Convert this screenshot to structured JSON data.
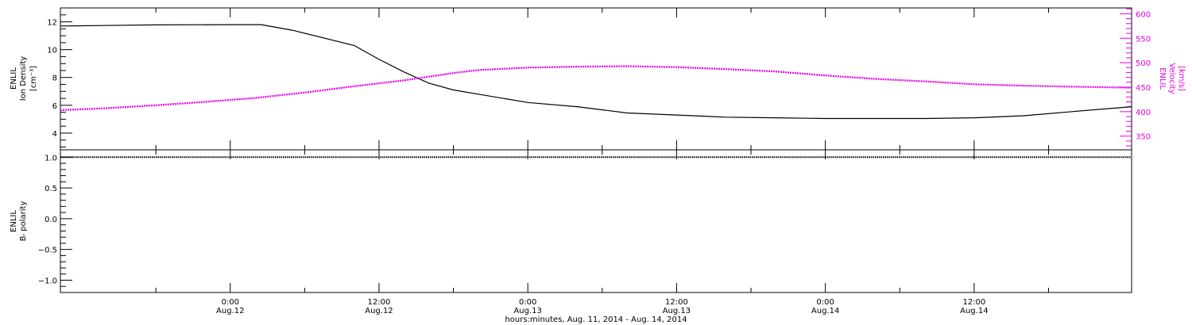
{
  "colors": {
    "density": "#000000",
    "velocity": "#e600e6",
    "polarity": "#000000",
    "axis": "#000000"
  },
  "chart_data": [
    {
      "type": "line",
      "panel": "top",
      "ylabel": [
        "ENLIL",
        "Ion Density",
        "[cm⁻³]"
      ],
      "y2label": [
        "ENLIL",
        "Velocity",
        "[km/s]"
      ],
      "ylim": [
        2.8,
        13.0
      ],
      "y2lim": [
        322,
        612
      ],
      "yticks": [
        4,
        6,
        8,
        10,
        12
      ],
      "y2ticks": [
        350,
        400,
        450,
        500,
        550,
        600
      ],
      "grid": false,
      "series": [
        {
          "axis": "left",
          "x": [
            -13.7,
            -12,
            -6,
            0,
            2.5,
            5,
            10,
            12,
            14,
            16,
            18,
            20,
            24,
            28,
            32,
            36,
            40,
            44,
            48,
            52,
            56,
            60,
            64,
            68,
            72.7
          ],
          "y": [
            11.7,
            11.72,
            11.78,
            11.8,
            11.8,
            11.4,
            10.3,
            9.3,
            8.4,
            7.6,
            7.1,
            6.8,
            6.2,
            5.9,
            5.45,
            5.3,
            5.15,
            5.1,
            5.05,
            5.05,
            5.05,
            5.1,
            5.25,
            5.55,
            5.9
          ]
        },
        {
          "axis": "right",
          "x": [
            -13.7,
            -10,
            -6,
            -2,
            2,
            6,
            10,
            14,
            18,
            20,
            24,
            28,
            32,
            36,
            40,
            44,
            48,
            52,
            56,
            60,
            64,
            68,
            72.7
          ],
          "y": [
            403,
            407,
            413,
            420,
            428,
            439,
            452,
            464,
            479,
            485,
            490,
            492,
            493,
            491,
            487,
            482,
            474,
            467,
            462,
            456,
            453,
            451,
            449
          ]
        }
      ]
    },
    {
      "type": "line",
      "panel": "bottom",
      "ylabel": [
        "ENLIL",
        "Bᵣ polarity"
      ],
      "ylim": [
        -1.2,
        1.12
      ],
      "yticks": [
        -1.0,
        -0.5,
        0.0,
        0.5,
        1.0
      ],
      "ytick_labels": [
        "−1.0",
        "−0.5",
        "0.0",
        "0.5",
        "1.0"
      ],
      "grid": false,
      "series": [
        {
          "x": [
            -13.7,
            72.7
          ],
          "y": [
            1.0,
            1.0
          ]
        }
      ]
    }
  ],
  "xaxis": {
    "xlim": [
      -13.7,
      72.7
    ],
    "ticks": [
      {
        "x": 0,
        "time": "0:00",
        "date": "Aug.12"
      },
      {
        "x": 12,
        "time": "12:00",
        "date": "Aug.12"
      },
      {
        "x": 24,
        "time": "0:00",
        "date": "Aug.13"
      },
      {
        "x": 36,
        "time": "12:00",
        "date": "Aug.13"
      },
      {
        "x": 48,
        "time": "0:00",
        "date": "Aug.14"
      },
      {
        "x": 60,
        "time": "12:00",
        "date": "Aug.14"
      }
    ],
    "title": "hours:minutes, Aug. 11, 2014 - Aug. 14, 2014"
  }
}
